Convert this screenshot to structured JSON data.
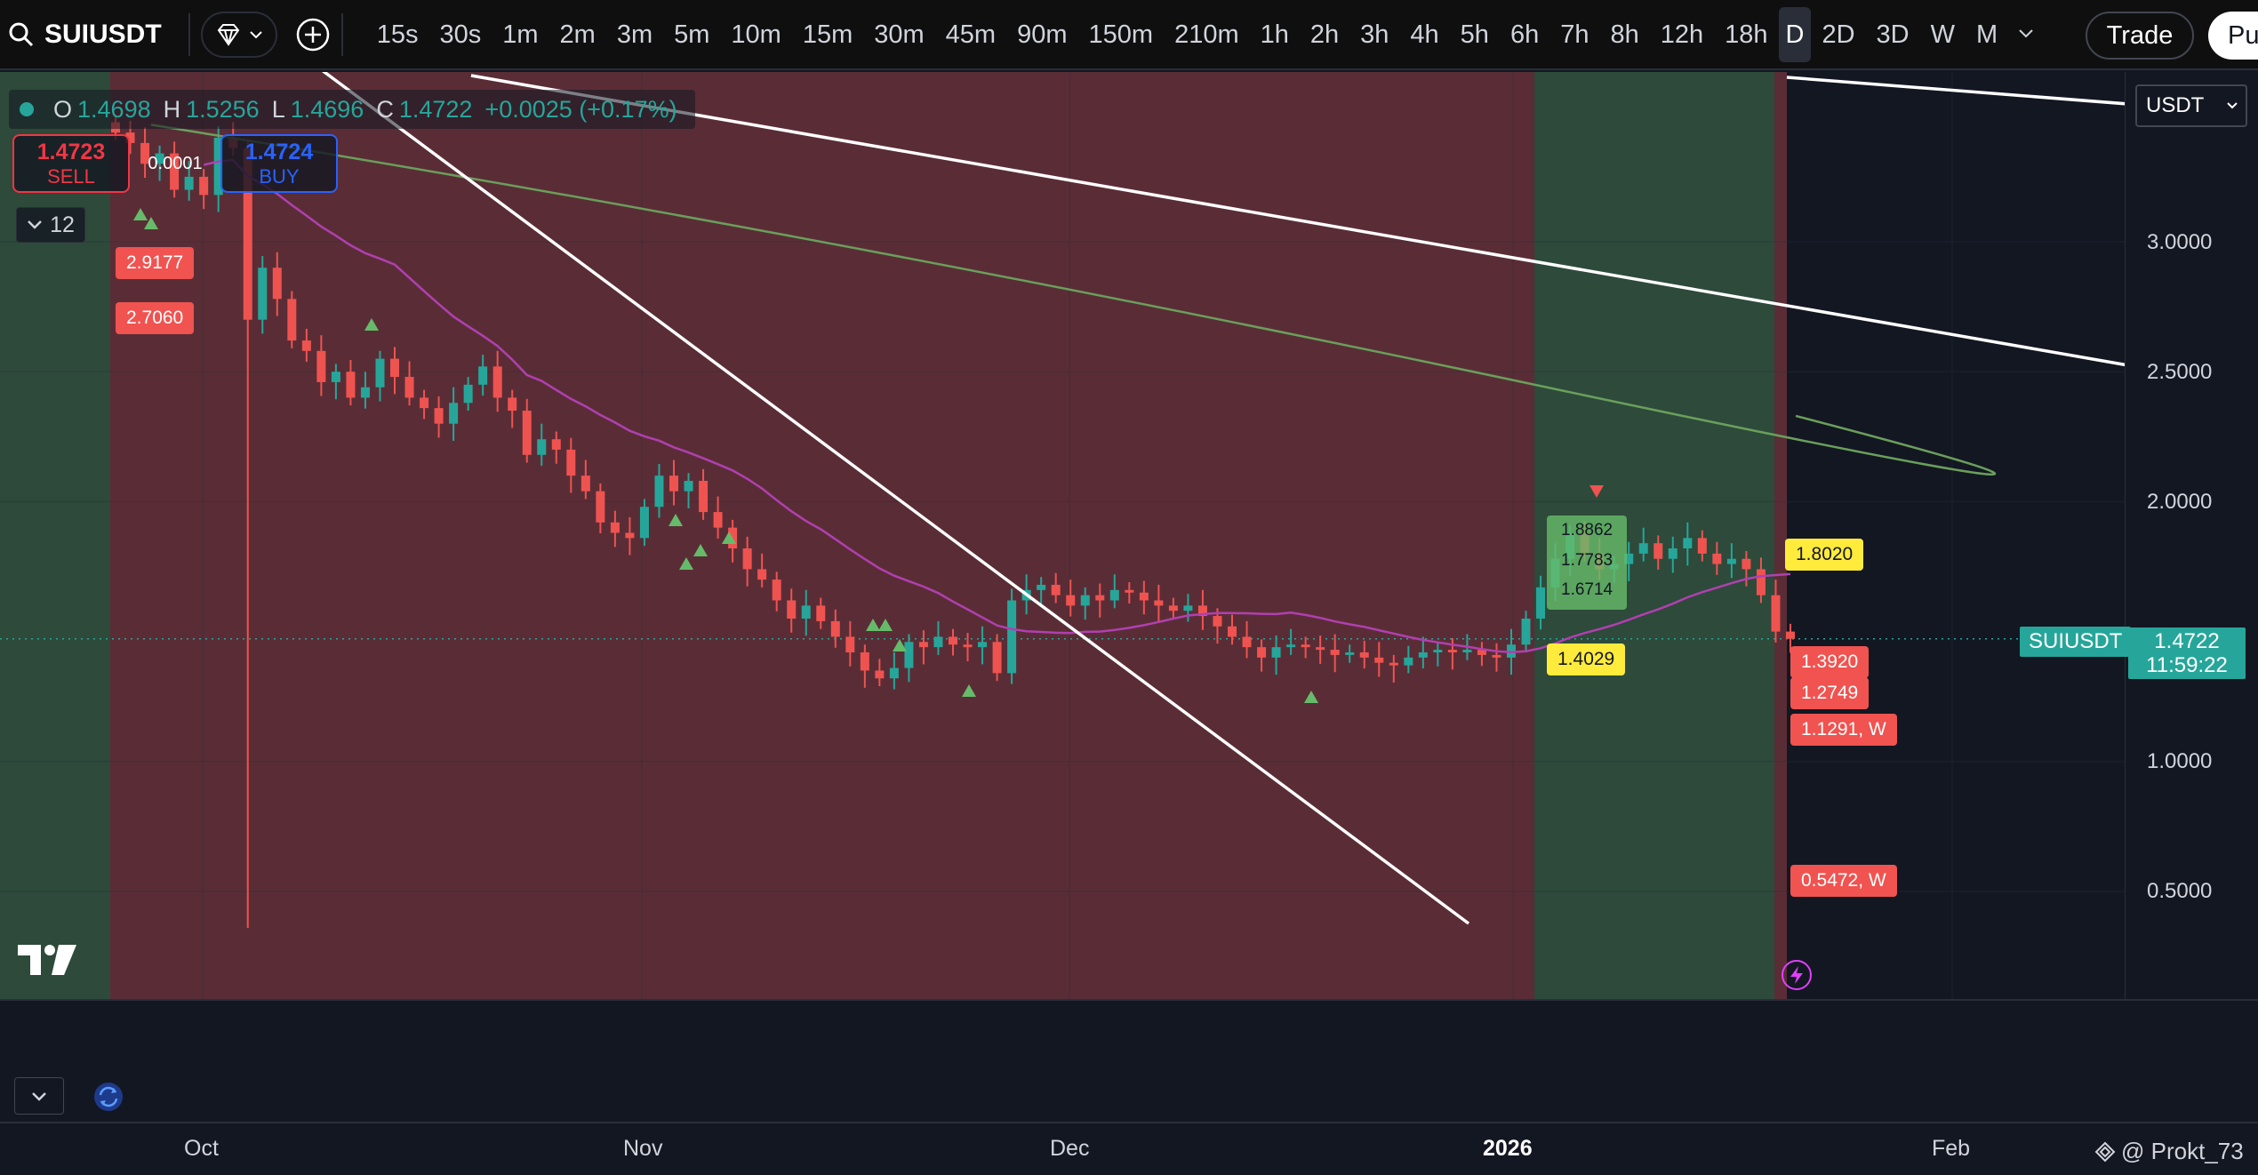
{
  "toolbar": {
    "symbol": "SUIUSDT",
    "intervals": [
      "15s",
      "30s",
      "1m",
      "2m",
      "3m",
      "5m",
      "10m",
      "15m",
      "30m",
      "45m",
      "90m",
      "150m",
      "210m",
      "1h",
      "2h",
      "3h",
      "4h",
      "5h",
      "6h",
      "7h",
      "8h",
      "12h",
      "18h",
      "D",
      "2D",
      "3D",
      "W",
      "M"
    ],
    "active_interval": "D",
    "trade_label": "Trade",
    "publish_label": "Pu"
  },
  "legend": {
    "o_label": "O",
    "o_value": "1.4698",
    "h_label": "H",
    "h_value": "1.5256",
    "l_label": "L",
    "l_value": "1.4696",
    "c_label": "C",
    "c_value": "1.4722",
    "change": "+0.0025 (+0.17%)"
  },
  "trading": {
    "sell_price": "1.4723",
    "sell_label": "SELL",
    "spread": "0.0001",
    "buy_price": "1.4724",
    "buy_label": "BUY"
  },
  "indicators_count": "12",
  "price_axis": {
    "currency": "USDT",
    "ticks": [
      "3.0000",
      "2.5000",
      "2.0000",
      "1.0000",
      "0.5000"
    ],
    "current_symbol": "SUIUSDT",
    "current_price": "1.4722",
    "countdown": "11:59:22"
  },
  "levels_left": [
    "2.9177",
    "2.7060"
  ],
  "levels_right": {
    "yellow_top": "1.8020",
    "yellow_mid": "1.4029",
    "red": [
      "1.3920",
      "1.2749",
      "1.1291, W",
      "0.5472, W"
    ],
    "box": [
      "1.8862",
      "1.7783",
      "1.6714"
    ]
  },
  "time_axis": {
    "labels": [
      "Oct",
      "Nov",
      "Dec",
      "2026",
      "Feb"
    ]
  },
  "watermark": "@ Prokt_73",
  "colors": {
    "up": "#26a69a",
    "down": "#ef5350",
    "red_zone": "#5a2d36",
    "green_zone": "#2d4a3a",
    "ma_magenta": "#b13fb0",
    "ma_green": "#6a9f5b"
  },
  "chart_data": {
    "type": "candlestick",
    "x_labels": [
      "Oct",
      "Nov",
      "Dec",
      "2026",
      "Feb"
    ],
    "y_ticks": [
      0.5,
      1.0,
      2.0,
      2.5,
      3.0
    ],
    "closes": [
      3.42,
      3.38,
      3.3,
      3.34,
      3.2,
      3.25,
      3.18,
      3.4,
      3.36,
      2.7,
      2.9,
      2.78,
      2.62,
      2.58,
      2.46,
      2.5,
      2.4,
      2.44,
      2.55,
      2.48,
      2.4,
      2.36,
      2.3,
      2.38,
      2.45,
      2.52,
      2.4,
      2.35,
      2.18,
      2.24,
      2.2,
      2.1,
      2.04,
      1.92,
      1.88,
      1.86,
      1.98,
      2.1,
      2.04,
      2.08,
      1.96,
      1.9,
      1.82,
      1.74,
      1.7,
      1.62,
      1.55,
      1.6,
      1.54,
      1.48,
      1.42,
      1.35,
      1.32,
      1.36,
      1.46,
      1.44,
      1.48,
      1.45,
      1.44,
      1.46,
      1.34,
      1.62,
      1.66,
      1.68,
      1.64,
      1.6,
      1.64,
      1.62,
      1.66,
      1.65,
      1.62,
      1.6,
      1.58,
      1.6,
      1.56,
      1.52,
      1.48,
      1.44,
      1.4,
      1.44,
      1.45,
      1.44,
      1.43,
      1.41,
      1.42,
      1.4,
      1.38,
      1.37,
      1.4,
      1.42,
      1.43,
      1.42,
      1.43,
      1.41,
      1.4,
      1.45,
      1.55,
      1.67,
      1.78,
      1.88,
      1.8,
      1.74,
      1.76,
      1.8,
      1.84,
      1.78,
      1.82,
      1.86,
      1.8,
      1.76,
      1.78,
      1.74,
      1.64,
      1.5,
      1.4722
    ]
  }
}
